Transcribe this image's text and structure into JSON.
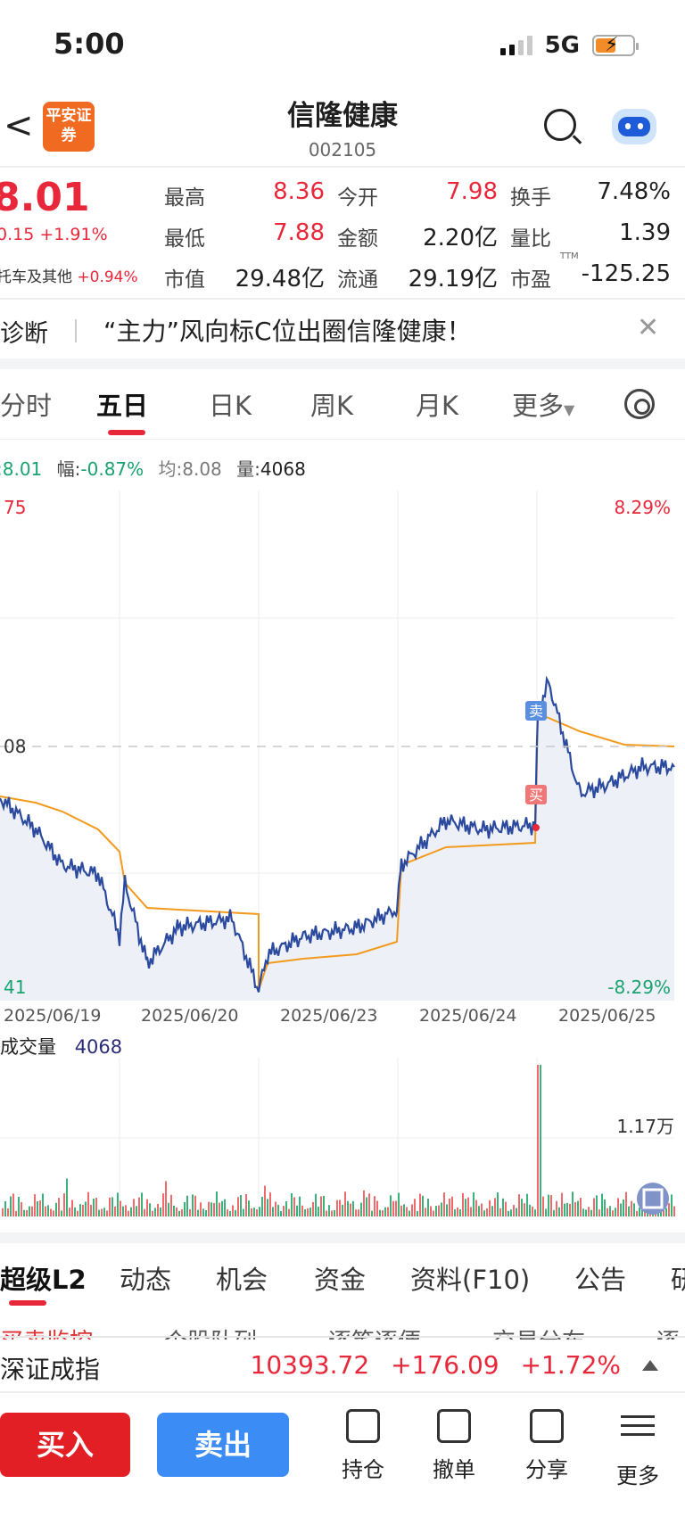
{
  "status": {
    "time": "5:00",
    "network": "5G"
  },
  "header": {
    "name": "信隆健康",
    "code": "002105",
    "logo_text": "平安证券"
  },
  "quote": {
    "price": "8.01",
    "change": "0.15 +1.91%",
    "tuoche_label": "托车及其他",
    "tuoche_value": "+0.94%",
    "stats": [
      {
        "label": "最高",
        "value": "8.36",
        "color": "#e8283a"
      },
      {
        "label": "今开",
        "value": "7.98",
        "color": "#e8283a"
      },
      {
        "label": "换手",
        "value": "7.48%",
        "color": "#1f1f1f"
      },
      {
        "label": "最低",
        "value": "7.88",
        "color": "#e8283a"
      },
      {
        "label": "金额",
        "value": "2.20亿",
        "color": "#1f1f1f"
      },
      {
        "label": "量比",
        "value": "1.39",
        "color": "#1f1f1f"
      },
      {
        "label": "市值",
        "value": "29.48亿",
        "color": "#1f1f1f"
      },
      {
        "label": "流通",
        "value": "29.19亿",
        "color": "#1f1f1f"
      },
      {
        "label": "市盈",
        "value": "-125.25",
        "color": "#1f1f1f",
        "sup": "TTM"
      }
    ]
  },
  "news": {
    "tag": "诊断",
    "text": "“主力”风向标C位出圈信隆健康！"
  },
  "period_tabs": [
    "分时",
    "五日",
    "日K",
    "周K",
    "月K",
    "更多"
  ],
  "active_period": "五日",
  "legend": {
    "price": ":8.01",
    "range_label": "幅:",
    "range": "-0.87%",
    "avg": "均:8.08",
    "vol_label": "量:",
    "vol": "4068"
  },
  "chart": {
    "left_top": "75",
    "left_mid": "08",
    "left_bottom": "41",
    "right_top": "8.29%",
    "right_bottom": "-8.29%",
    "dates": [
      "2025/06/19",
      "2025/06/20",
      "2025/06/23",
      "2025/06/24",
      "2025/06/25"
    ],
    "buy_marker": "买",
    "sell_marker": "卖",
    "volume_title": "成交量",
    "volume_value": "4068",
    "volume_max": "1.17万"
  },
  "chart_data": {
    "type": "line",
    "x": [
      "2025/06/19",
      "2025/06/20",
      "2025/06/23",
      "2025/06/24",
      "2025/06/25"
    ],
    "series": [],
    "y_range_pct": [
      -8.29,
      8.29
    ]
  },
  "bottom_tabs": [
    "超级L2",
    "动态",
    "机会",
    "资金",
    "资料(F10)",
    "公告",
    "研"
  ],
  "sub_tabs": [
    "买卖监控",
    "个股队列",
    "逐笔逐便",
    "交易分布",
    "逐"
  ],
  "index": {
    "name": "深证成指",
    "value": "10393.72",
    "change": "+176.09",
    "pct": "+1.72%"
  },
  "actions": {
    "buy": "买入",
    "sell": "卖出",
    "hold": "持仓",
    "cancel": "撤单",
    "share": "分享",
    "more": "更多"
  }
}
